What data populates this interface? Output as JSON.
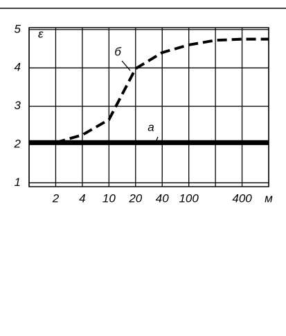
{
  "chart_data": {
    "type": "line",
    "categories": [
      null,
      "2",
      "4",
      "10",
      "20",
      "40",
      "100",
      null,
      "400",
      null
    ],
    "x_label": "м",
    "y_label": "ε",
    "series": [
      {
        "name": "а",
        "color": "#000000",
        "style": "solid",
        "values": [
          2.05,
          2.05,
          2.05,
          2.05,
          2.05,
          2.05,
          2.05,
          2.05,
          2.05,
          2.05
        ]
      },
      {
        "name": "б",
        "color": "#000000",
        "style": "dashed",
        "values": [
          null,
          2.05,
          2.25,
          2.65,
          3.98,
          4.4,
          4.6,
          4.72,
          4.75,
          4.75
        ]
      }
    ],
    "ylim": [
      0.9,
      5.05
    ],
    "yticks": [
      1,
      2,
      3,
      4,
      5
    ],
    "grid": true
  }
}
